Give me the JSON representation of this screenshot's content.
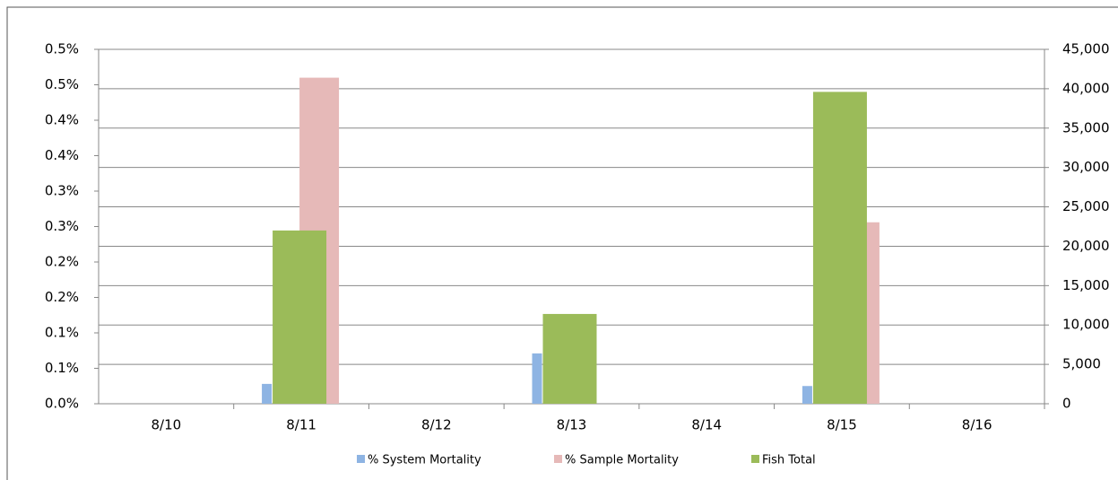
{
  "chart_data": {
    "type": "bar",
    "categories": [
      "8/10",
      "8/11",
      "8/12",
      "8/13",
      "8/14",
      "8/15",
      "8/16"
    ],
    "series": [
      {
        "name": "% System Mortality",
        "color": "#8eb4e3",
        "values": [
          0,
          0.028,
          0,
          0.071,
          0,
          0.025,
          0
        ]
      },
      {
        "name": "% Sample Mortality",
        "color": "#e6b9b8",
        "values": [
          0,
          0.46,
          0,
          0,
          0,
          0.256,
          0
        ]
      },
      {
        "name": "Fish Total",
        "color": "#9bbb59",
        "axis": "y2",
        "values": [
          0,
          22000,
          0,
          11400,
          0,
          39600,
          0
        ]
      }
    ],
    "ylim": [
      0,
      0.5
    ],
    "yticks": [
      {
        "value": 0,
        "label": "0.0%"
      },
      {
        "value": 0.05,
        "label": "0.1%"
      },
      {
        "value": 0.1,
        "label": "0.1%"
      },
      {
        "value": 0.15,
        "label": "0.2%"
      },
      {
        "value": 0.2,
        "label": "0.2%"
      },
      {
        "value": 0.25,
        "label": "0.3%"
      },
      {
        "value": 0.3,
        "label": "0.3%"
      },
      {
        "value": 0.35,
        "label": "0.4%"
      },
      {
        "value": 0.4,
        "label": "0.4%"
      },
      {
        "value": 0.45,
        "label": "0.5%"
      },
      {
        "value": 0.5,
        "label": "0.5%"
      }
    ],
    "y2lim": [
      0,
      45000
    ],
    "y2ticks": [
      0,
      {
        "value": 5000,
        "label": "5,000"
      },
      {
        "value": 10000,
        "label": "10,000"
      },
      {
        "value": 15000,
        "label": "15,000"
      },
      {
        "value": 20000,
        "label": "20,000"
      },
      {
        "value": 25000,
        "label": "25,000"
      },
      {
        "value": 30000,
        "label": "30,000"
      },
      {
        "value": 35000,
        "label": "35,000"
      },
      {
        "value": 40000,
        "label": "40,000"
      },
      {
        "value": 45000,
        "label": "45,000"
      }
    ],
    "grid": true,
    "legend": "bottom"
  }
}
